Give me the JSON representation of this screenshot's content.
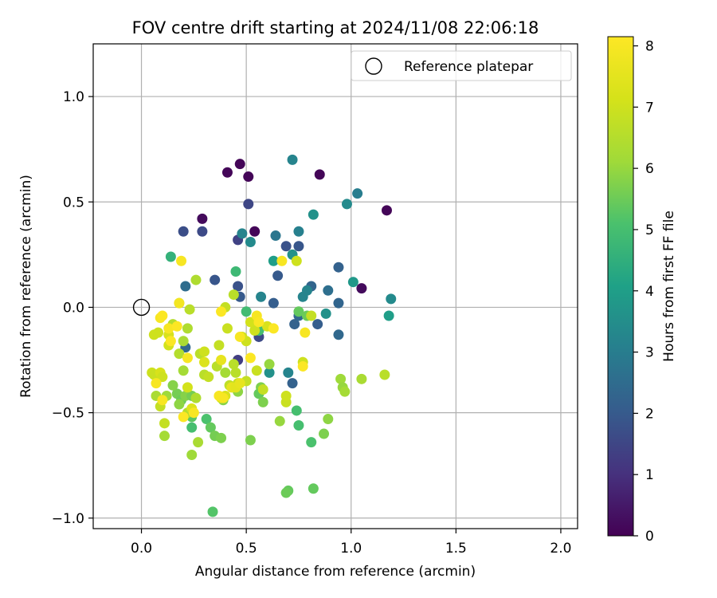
{
  "chart_data": {
    "type": "scatter",
    "title": "FOV centre drift starting at 2024/11/08 22:06:18",
    "xlabel": "Angular distance from reference (arcmin)",
    "ylabel": "Rotation from reference (arcmin)",
    "xlim": [
      -0.23,
      2.08
    ],
    "ylim": [
      -1.05,
      1.25
    ],
    "xticks": [
      "0.0",
      "0.5",
      "1.0",
      "1.5",
      "2.0"
    ],
    "xtick_values": [
      0.0,
      0.5,
      1.0,
      1.5,
      2.0
    ],
    "yticks": [
      "1.0",
      "0.5",
      "0.0",
      "−0.5",
      "−1.0"
    ],
    "ytick_values": [
      1.0,
      0.5,
      0.0,
      -0.5,
      -1.0
    ],
    "grid": true,
    "colormap": "viridis",
    "colorbar": {
      "label": "Hours from first FF file",
      "range": [
        0,
        8.15
      ],
      "ticks": [
        "0",
        "1",
        "2",
        "3",
        "4",
        "5",
        "6",
        "7",
        "8"
      ],
      "tick_values": [
        0,
        1,
        2,
        3,
        4,
        5,
        6,
        7,
        8
      ]
    },
    "legend": {
      "position": "top-right",
      "entries": [
        "Reference platepar"
      ]
    },
    "reference_point": {
      "x": 0.0,
      "y": 0.0
    },
    "points": [
      [
        0.41,
        0.64,
        0.1
      ],
      [
        0.47,
        0.68,
        0.1
      ],
      [
        0.51,
        0.62,
        0.1
      ],
      [
        0.85,
        0.63,
        0.1
      ],
      [
        1.17,
        0.46,
        0.1
      ],
      [
        0.29,
        0.42,
        0.2
      ],
      [
        0.54,
        0.36,
        0.1
      ],
      [
        1.05,
        0.09,
        0.2
      ],
      [
        0.51,
        0.49,
        1.5
      ],
      [
        0.2,
        0.36,
        1.7
      ],
      [
        0.29,
        0.36,
        1.6
      ],
      [
        0.46,
        0.32,
        1.4
      ],
      [
        0.35,
        0.13,
        1.9
      ],
      [
        0.46,
        0.1,
        1.8
      ],
      [
        0.47,
        0.05,
        2.0
      ],
      [
        0.46,
        -0.25,
        1.3
      ],
      [
        0.56,
        -0.14,
        1.6
      ],
      [
        0.65,
        0.15,
        2.0
      ],
      [
        0.69,
        0.29,
        1.8
      ],
      [
        0.75,
        0.29,
        1.9
      ],
      [
        0.63,
        0.02,
        2.1
      ],
      [
        0.73,
        -0.08,
        2.2
      ],
      [
        0.84,
        -0.08,
        2.1
      ],
      [
        0.81,
        0.1,
        2.3
      ],
      [
        0.94,
        0.19,
        2.2
      ],
      [
        0.94,
        0.02,
        2.3
      ],
      [
        0.94,
        -0.13,
        2.4
      ],
      [
        0.75,
        -0.04,
        2.4
      ],
      [
        0.72,
        -0.36,
        2.2
      ],
      [
        0.89,
        0.08,
        2.6
      ],
      [
        0.21,
        0.1,
        2.5
      ],
      [
        0.21,
        -0.19,
        2.4
      ],
      [
        0.72,
        0.7,
        3.2
      ],
      [
        0.98,
        0.49,
        3.4
      ],
      [
        1.03,
        0.54,
        3.0
      ],
      [
        0.82,
        0.44,
        3.6
      ],
      [
        0.52,
        0.31,
        3.4
      ],
      [
        0.48,
        0.35,
        3.2
      ],
      [
        0.64,
        0.34,
        2.8
      ],
      [
        0.75,
        0.36,
        3.1
      ],
      [
        0.72,
        0.25,
        3.6
      ],
      [
        0.57,
        0.05,
        3.2
      ],
      [
        0.77,
        0.05,
        3.2
      ],
      [
        0.79,
        0.08,
        3.2
      ],
      [
        0.88,
        -0.03,
        3.6
      ],
      [
        1.01,
        0.12,
        3.8
      ],
      [
        1.19,
        0.04,
        3.4
      ],
      [
        1.18,
        -0.04,
        4.0
      ],
      [
        0.7,
        -0.31,
        3.2
      ],
      [
        0.61,
        -0.31,
        3.6
      ],
      [
        0.63,
        0.22,
        4.0
      ],
      [
        0.14,
        0.24,
        4.6
      ],
      [
        0.45,
        0.17,
        4.8
      ],
      [
        0.5,
        -0.02,
        4.9
      ],
      [
        0.56,
        -0.11,
        5.0
      ],
      [
        0.75,
        -0.02,
        5.4
      ],
      [
        0.79,
        -0.04,
        5.5
      ],
      [
        0.74,
        -0.49,
        5.0
      ],
      [
        0.75,
        -0.56,
        5.0
      ],
      [
        0.81,
        -0.64,
        5.1
      ],
      [
        0.82,
        -0.86,
        5.4
      ],
      [
        0.7,
        -0.87,
        5.4
      ],
      [
        0.69,
        -0.88,
        5.5
      ],
      [
        0.34,
        -0.97,
        5.2
      ],
      [
        0.24,
        -0.57,
        5.0
      ],
      [
        0.31,
        -0.53,
        5.1
      ],
      [
        0.33,
        -0.57,
        5.4
      ],
      [
        0.35,
        -0.61,
        5.6
      ],
      [
        0.38,
        -0.62,
        5.7
      ],
      [
        0.17,
        -0.41,
        5.6
      ],
      [
        0.19,
        -0.44,
        5.5
      ],
      [
        0.21,
        -0.42,
        5.8
      ],
      [
        0.24,
        -0.42,
        5.6
      ],
      [
        0.24,
        -0.52,
        5.3
      ],
      [
        0.57,
        -0.38,
        5.7
      ],
      [
        0.56,
        -0.41,
        5.4
      ],
      [
        0.58,
        -0.45,
        5.7
      ],
      [
        0.61,
        -0.27,
        6.0
      ],
      [
        0.46,
        -0.4,
        5.9
      ],
      [
        0.4,
        -0.31,
        6.2
      ],
      [
        0.39,
        -0.44,
        5.8
      ],
      [
        0.52,
        -0.63,
        5.7
      ],
      [
        0.66,
        -0.54,
        6.0
      ],
      [
        0.87,
        -0.6,
        5.7
      ],
      [
        0.89,
        -0.53,
        5.9
      ],
      [
        0.95,
        -0.34,
        6.1
      ],
      [
        0.96,
        -0.38,
        6.0
      ],
      [
        0.97,
        -0.4,
        6.2
      ],
      [
        1.05,
        -0.34,
        6.3
      ],
      [
        1.16,
        -0.32,
        6.6
      ],
      [
        0.15,
        -0.37,
        5.8
      ],
      [
        0.18,
        -0.46,
        5.9
      ],
      [
        0.2,
        -0.3,
        6.2
      ],
      [
        0.12,
        -0.42,
        6.1
      ],
      [
        0.11,
        -0.61,
        6.2
      ],
      [
        0.07,
        -0.42,
        6.3
      ],
      [
        0.24,
        -0.7,
        6.1
      ],
      [
        0.27,
        -0.64,
        6.3
      ],
      [
        0.22,
        -0.5,
        6.5
      ],
      [
        0.26,
        -0.43,
        6.4
      ],
      [
        0.18,
        -0.22,
        6.5
      ],
      [
        0.2,
        -0.16,
        6.3
      ],
      [
        0.22,
        -0.1,
        6.4
      ],
      [
        0.15,
        -0.08,
        6.5
      ],
      [
        0.23,
        -0.01,
        6.6
      ],
      [
        0.18,
        0.02,
        6.7
      ],
      [
        0.26,
        0.13,
        6.4
      ],
      [
        0.28,
        -0.22,
        6.6
      ],
      [
        0.3,
        -0.32,
        6.6
      ],
      [
        0.32,
        -0.33,
        6.8
      ],
      [
        0.37,
        -0.18,
        6.8
      ],
      [
        0.44,
        -0.27,
        6.6
      ],
      [
        0.45,
        -0.31,
        6.6
      ],
      [
        0.42,
        -0.37,
        6.7
      ],
      [
        0.46,
        -0.36,
        6.9
      ],
      [
        0.5,
        -0.35,
        6.8
      ],
      [
        0.55,
        -0.3,
        6.9
      ],
      [
        0.58,
        -0.39,
        6.8
      ],
      [
        0.69,
        -0.45,
        6.9
      ],
      [
        0.69,
        -0.42,
        7.0
      ],
      [
        0.77,
        -0.26,
        7.0
      ],
      [
        0.81,
        -0.04,
        6.8
      ],
      [
        0.74,
        0.22,
        7.0
      ],
      [
        0.36,
        -0.28,
        6.6
      ],
      [
        0.4,
        0.0,
        6.8
      ],
      [
        0.41,
        -0.1,
        6.9
      ],
      [
        0.44,
        0.06,
        6.6
      ],
      [
        0.48,
        -0.14,
        7.0
      ],
      [
        0.5,
        -0.16,
        7.0
      ],
      [
        0.54,
        -0.11,
        7.0
      ],
      [
        0.52,
        -0.07,
        7.1
      ],
      [
        0.6,
        -0.09,
        7.2
      ],
      [
        0.06,
        -0.13,
        7.0
      ],
      [
        0.08,
        -0.12,
        7.0
      ],
      [
        0.13,
        -0.13,
        7.2
      ],
      [
        0.13,
        -0.18,
        7.1
      ],
      [
        0.05,
        -0.31,
        7.0
      ],
      [
        0.06,
        -0.32,
        6.9
      ],
      [
        0.09,
        -0.31,
        7.2
      ],
      [
        0.1,
        -0.33,
        7.0
      ],
      [
        0.09,
        -0.47,
        6.8
      ],
      [
        0.11,
        -0.55,
        6.8
      ],
      [
        0.22,
        -0.38,
        7.1
      ],
      [
        0.24,
        -0.48,
        7.3
      ],
      [
        0.3,
        -0.26,
        7.3
      ],
      [
        0.3,
        -0.21,
        7.0
      ],
      [
        0.38,
        -0.43,
        7.3
      ],
      [
        0.4,
        -0.42,
        7.2
      ],
      [
        0.43,
        -0.38,
        7.6
      ],
      [
        0.45,
        -0.38,
        7.5
      ],
      [
        0.47,
        -0.36,
        7.6
      ],
      [
        0.38,
        -0.25,
        7.6
      ],
      [
        0.18,
        0.02,
        7.9
      ],
      [
        0.19,
        0.22,
        8.0
      ],
      [
        0.09,
        -0.05,
        8.0
      ],
      [
        0.1,
        -0.04,
        8.1
      ],
      [
        0.14,
        -0.16,
        8.1
      ],
      [
        0.13,
        -0.1,
        8.0
      ],
      [
        0.17,
        -0.09,
        8.1
      ],
      [
        0.07,
        -0.36,
        8.0
      ],
      [
        0.1,
        -0.44,
        8.0
      ],
      [
        0.2,
        -0.52,
        8.1
      ],
      [
        0.25,
        -0.5,
        8.0
      ],
      [
        0.22,
        -0.24,
        8.0
      ],
      [
        0.38,
        -0.02,
        8.1
      ],
      [
        0.39,
        -0.43,
        8.0
      ],
      [
        0.37,
        -0.42,
        8.0
      ],
      [
        0.47,
        -0.14,
        8.0
      ],
      [
        0.52,
        -0.24,
        8.1
      ],
      [
        0.55,
        -0.04,
        8.0
      ],
      [
        0.56,
        -0.07,
        8.1
      ],
      [
        0.67,
        0.22,
        8.0
      ],
      [
        0.77,
        -0.28,
        8.1
      ],
      [
        0.78,
        -0.12,
        8.0
      ],
      [
        0.63,
        -0.1,
        8.1
      ]
    ]
  }
}
